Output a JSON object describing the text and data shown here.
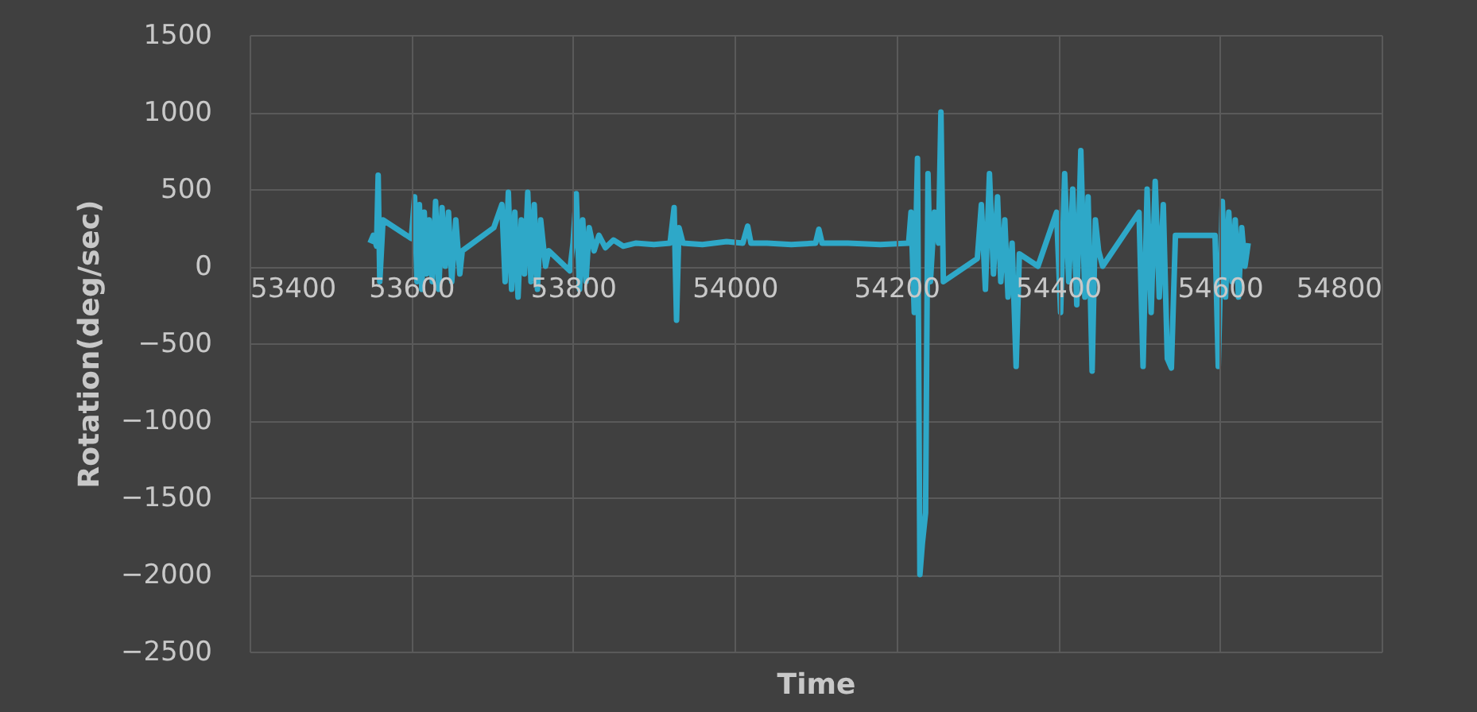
{
  "chart_data": {
    "type": "line",
    "xlabel": "Time",
    "ylabel": "Rotation(deg/sec)",
    "xlim": [
      53400,
      54800
    ],
    "xticks": [
      53400,
      53600,
      53800,
      54000,
      54200,
      54400,
      54600,
      54800
    ],
    "ylim": [
      -2500,
      1500
    ],
    "yticks": [
      -2500,
      -2000,
      -1500,
      -1000,
      -500,
      0,
      500,
      1000,
      1500
    ],
    "grid": true,
    "line_style": "solid",
    "marker": "none",
    "x": [
      53549,
      53553,
      53557,
      53559,
      53561,
      53565,
      53600,
      53604,
      53607,
      53610,
      53613,
      53616,
      53619,
      53622,
      53626,
      53630,
      53634,
      53638,
      53642,
      53646,
      53650,
      53655,
      53660,
      53663,
      53702,
      53712,
      53716,
      53720,
      53724,
      53728,
      53732,
      53736,
      53740,
      53744,
      53748,
      53752,
      53756,
      53760,
      53766,
      53770,
      53796,
      53800,
      53804,
      53808,
      53812,
      53816,
      53820,
      53826,
      53832,
      53840,
      53850,
      53862,
      53878,
      53900,
      53920,
      53925,
      53928,
      53931,
      53936,
      53960,
      53990,
      54010,
      54016,
      54020,
      54040,
      54070,
      54100,
      54104,
      54108,
      54140,
      54180,
      54215,
      54218,
      54222,
      54226,
      54229,
      54232,
      54236,
      54239,
      54242,
      54247,
      54252,
      54255,
      54258,
      54300,
      54305,
      54310,
      54315,
      54320,
      54325,
      54329,
      54334,
      54338,
      54343,
      54348,
      54352,
      54375,
      54398,
      54403,
      54408,
      54413,
      54418,
      54423,
      54428,
      54433,
      54437,
      54442,
      54446,
      54450,
      54455,
      54500,
      54505,
      54510,
      54515,
      54520,
      54525,
      54530,
      54535,
      54540,
      54545,
      54550,
      54594,
      54598,
      54603,
      54607,
      54611,
      54615,
      54619,
      54623,
      54627,
      54631,
      54635
    ],
    "series": [
      {
        "color": "#2ea8c8",
        "values": [
          150,
          200,
          130,
          590,
          -100,
          300,
          180,
          450,
          -100,
          400,
          -150,
          350,
          -50,
          300,
          -100,
          420,
          -150,
          380,
          0,
          350,
          -100,
          300,
          -50,
          100,
          250,
          400,
          -100,
          480,
          -150,
          350,
          -200,
          300,
          -50,
          480,
          -100,
          400,
          -150,
          300,
          0,
          100,
          -30,
          150,
          470,
          -150,
          300,
          -100,
          250,
          100,
          200,
          120,
          170,
          130,
          150,
          140,
          150,
          380,
          -350,
          250,
          150,
          140,
          160,
          150,
          260,
          150,
          150,
          140,
          150,
          240,
          150,
          150,
          140,
          150,
          350,
          -300,
          700,
          -2000,
          -1800,
          -1600,
          600,
          -100,
          350,
          150,
          1000,
          -100,
          50,
          400,
          -150,
          600,
          -50,
          450,
          -100,
          300,
          -200,
          150,
          -650,
          80,
          0,
          350,
          -300,
          600,
          -100,
          500,
          -250,
          750,
          -200,
          450,
          -680,
          300,
          100,
          0,
          350,
          -650,
          500,
          -300,
          550,
          -200,
          400,
          -600,
          -660,
          200,
          200,
          200,
          -650,
          420,
          -200,
          350,
          -100,
          300,
          -200,
          250,
          0,
          150
        ]
      }
    ]
  }
}
